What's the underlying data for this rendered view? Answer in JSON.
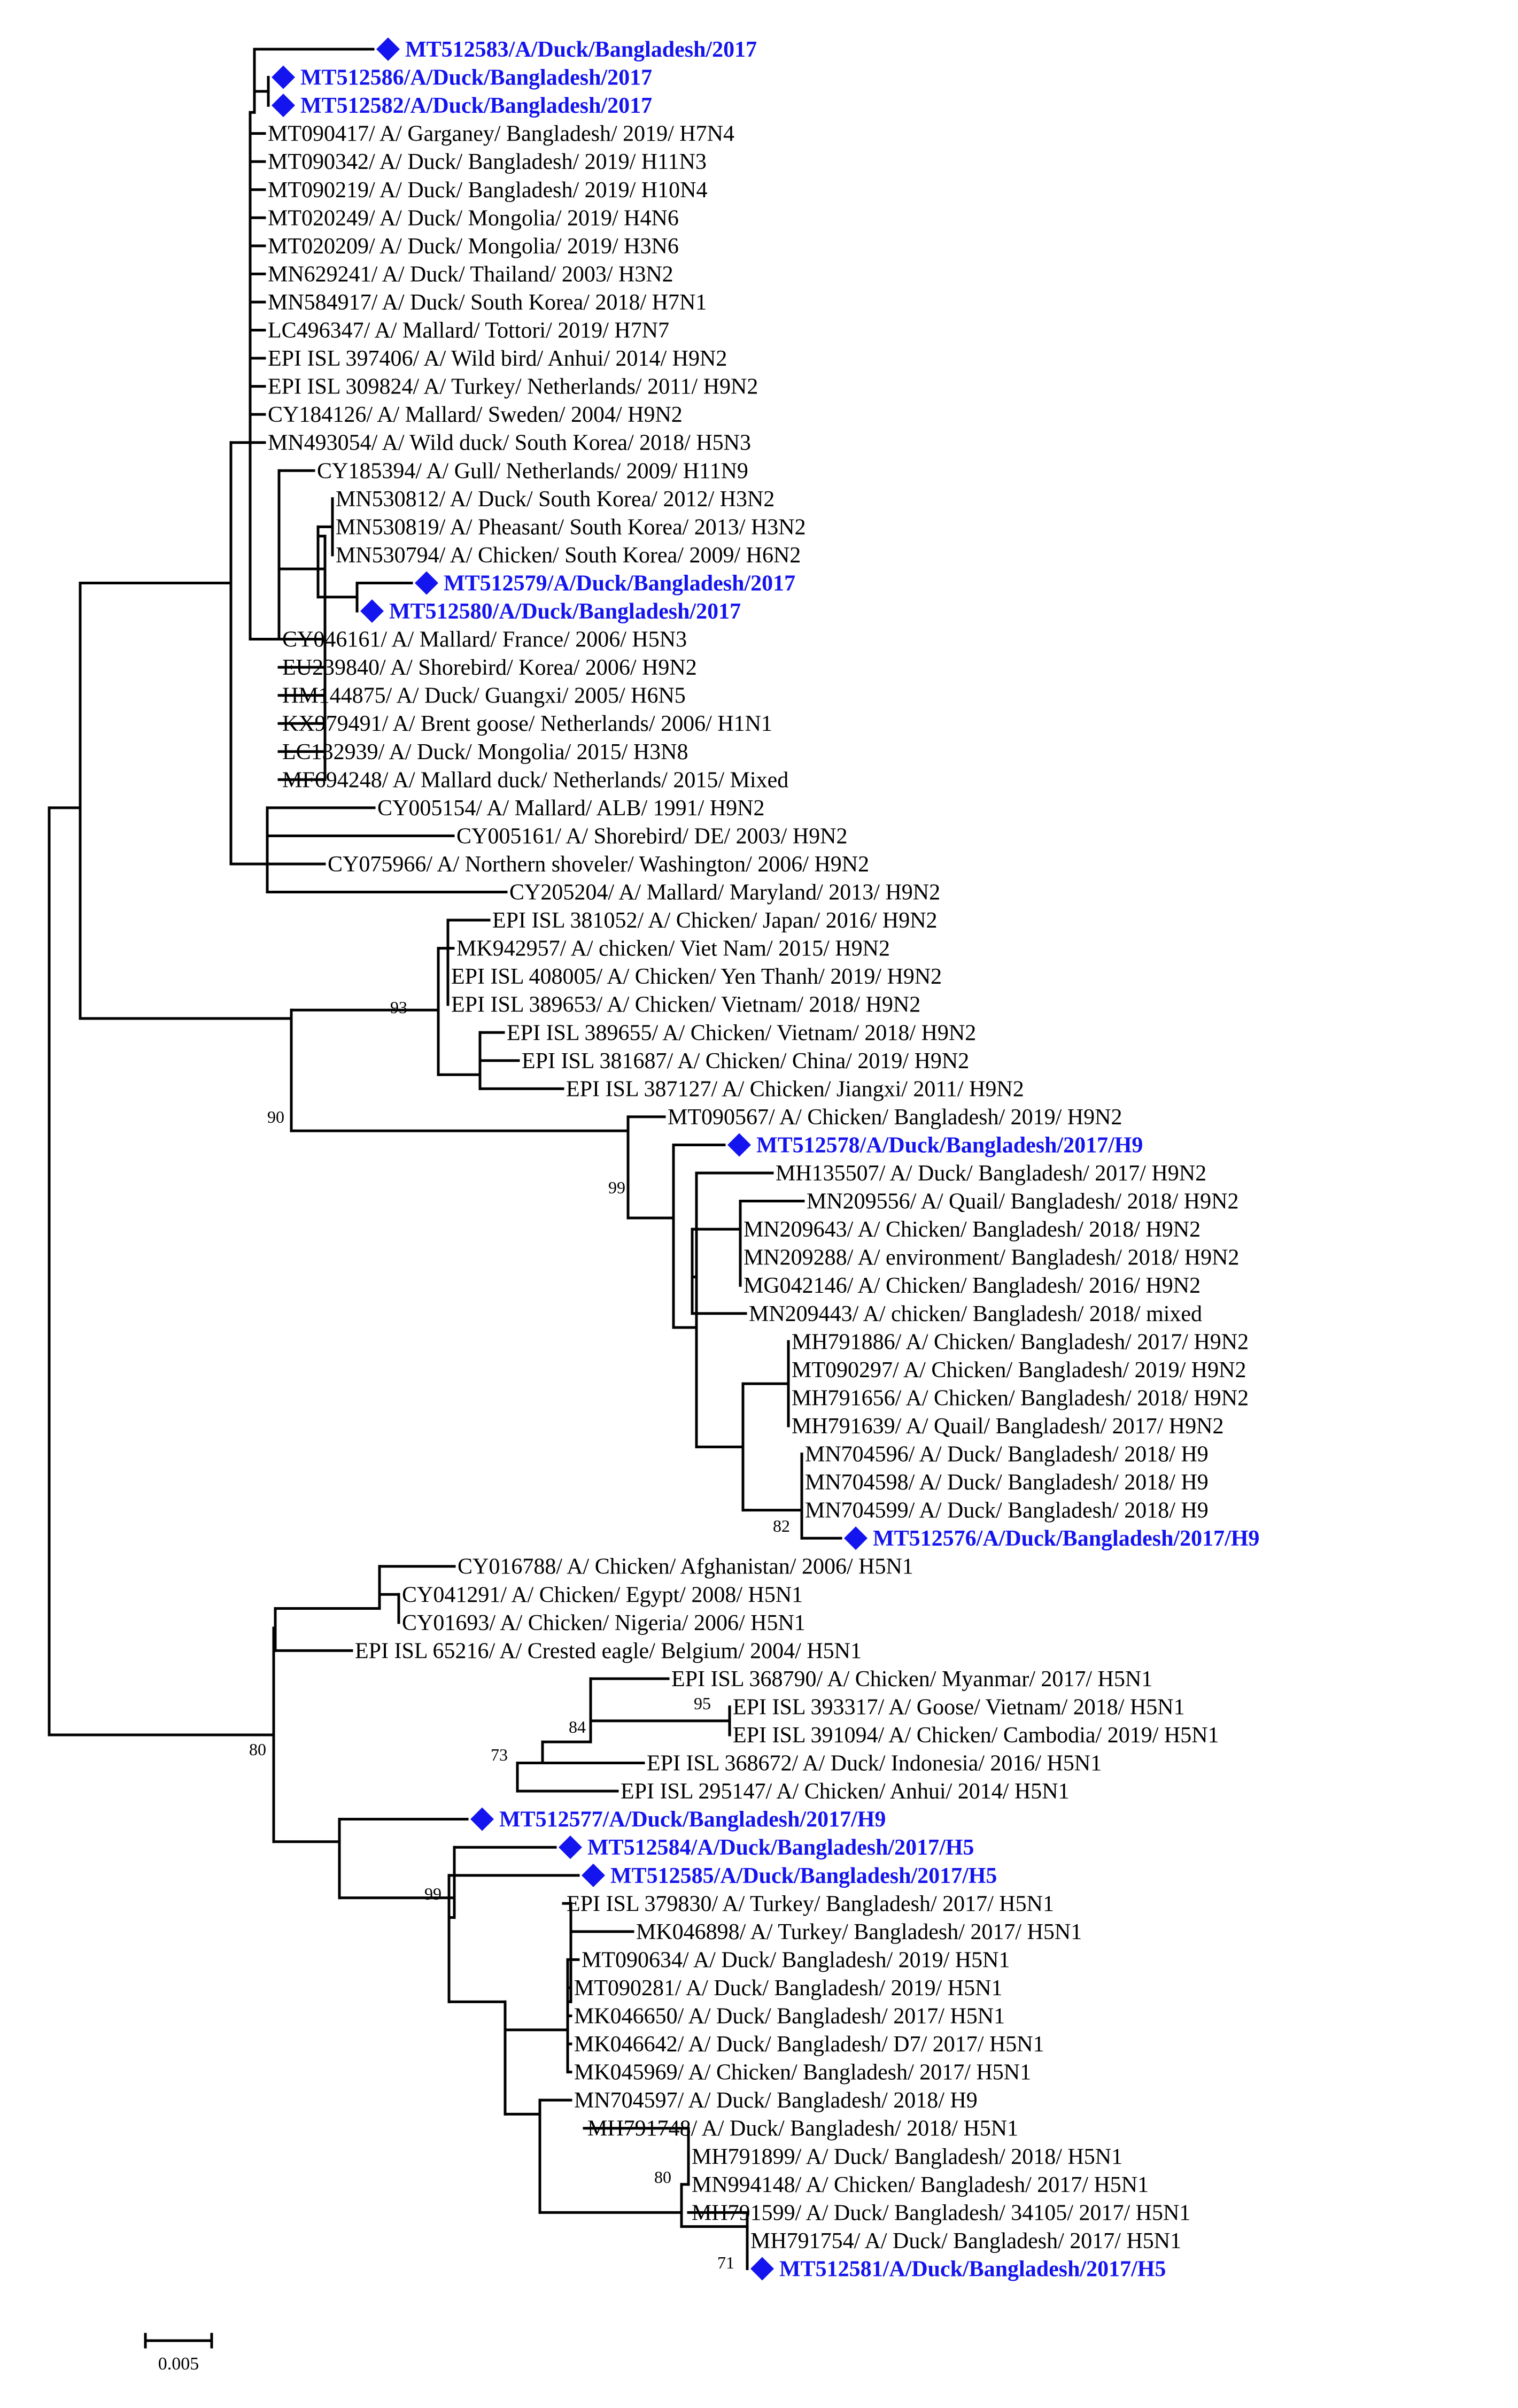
{
  "figure": {
    "kind": "phylogenetic-tree",
    "highlight_color": "#1414ee",
    "highlight_marker": "diamond",
    "scale_bar_label": "0.005"
  },
  "tips": [
    {
      "label": "MT512583/A/Duck/Bangladesh/2017",
      "highlight": true
    },
    {
      "label": "MT512586/A/Duck/Bangladesh/2017",
      "highlight": true
    },
    {
      "label": "MT512582/A/Duck/Bangladesh/2017",
      "highlight": true
    },
    {
      "label": "MT090417/ A/ Garganey/ Bangladesh/ 2019/ H7N4",
      "highlight": false
    },
    {
      "label": "MT090342/ A/ Duck/ Bangladesh/ 2019/ H11N3",
      "highlight": false
    },
    {
      "label": "MT090219/ A/ Duck/ Bangladesh/ 2019/ H10N4",
      "highlight": false
    },
    {
      "label": "MT020249/ A/ Duck/ Mongolia/ 2019/ H4N6",
      "highlight": false
    },
    {
      "label": "MT020209/ A/ Duck/ Mongolia/ 2019/ H3N6",
      "highlight": false
    },
    {
      "label": "MN629241/ A/ Duck/ Thailand/ 2003/ H3N2",
      "highlight": false
    },
    {
      "label": "MN584917/ A/ Duck/ South Korea/ 2018/ H7N1",
      "highlight": false
    },
    {
      "label": "LC496347/ A/ Mallard/ Tottori/ 2019/ H7N7",
      "highlight": false
    },
    {
      "label": "EPI ISL 397406/ A/ Wild bird/ Anhui/ 2014/ H9N2",
      "highlight": false
    },
    {
      "label": "EPI ISL 309824/ A/ Turkey/ Netherlands/ 2011/ H9N2",
      "highlight": false
    },
    {
      "label": "CY184126/ A/ Mallard/ Sweden/ 2004/ H9N2",
      "highlight": false
    },
    {
      "label": "MN493054/ A/ Wild duck/ South Korea/ 2018/ H5N3",
      "highlight": false
    },
    {
      "label": "CY185394/ A/ Gull/ Netherlands/ 2009/ H11N9",
      "highlight": false
    },
    {
      "label": "MN530812/ A/ Duck/ South Korea/ 2012/ H3N2",
      "highlight": false
    },
    {
      "label": "MN530819/ A/ Pheasant/ South Korea/ 2013/ H3N2",
      "highlight": false
    },
    {
      "label": "MN530794/ A/ Chicken/ South Korea/ 2009/ H6N2",
      "highlight": false
    },
    {
      "label": "MT512579/A/Duck/Bangladesh/2017",
      "highlight": true
    },
    {
      "label": "MT512580/A/Duck/Bangladesh/2017",
      "highlight": true
    },
    {
      "label": "CY046161/ A/ Mallard/ France/ 2006/ H5N3",
      "highlight": false
    },
    {
      "label": "EU239840/ A/ Shorebird/ Korea/ 2006/ H9N2",
      "highlight": false
    },
    {
      "label": "HM144875/ A/ Duck/ Guangxi/ 2005/ H6N5",
      "highlight": false
    },
    {
      "label": "KX979491/ A/ Brent goose/ Netherlands/ 2006/ H1N1",
      "highlight": false
    },
    {
      "label": "LC132939/ A/ Duck/ Mongolia/ 2015/ H3N8",
      "highlight": false
    },
    {
      "label": "MF694248/ A/ Mallard duck/ Netherlands/ 2015/ Mixed",
      "highlight": false
    },
    {
      "label": "CY005154/ A/ Mallard/ ALB/ 1991/ H9N2",
      "highlight": false
    },
    {
      "label": "CY005161/ A/ Shorebird/ DE/ 2003/ H9N2",
      "highlight": false
    },
    {
      "label": "CY075966/ A/ Northern shoveler/ Washington/ 2006/ H9N2",
      "highlight": false
    },
    {
      "label": "CY205204/ A/ Mallard/ Maryland/ 2013/ H9N2",
      "highlight": false
    },
    {
      "label": "EPI ISL 381052/ A/ Chicken/ Japan/ 2016/ H9N2",
      "highlight": false
    },
    {
      "label": "MK942957/ A/ chicken/ Viet Nam/ 2015/ H9N2",
      "highlight": false
    },
    {
      "label": "EPI ISL 408005/ A/ Chicken/ Yen Thanh/ 2019/ H9N2",
      "highlight": false
    },
    {
      "label": "EPI ISL 389653/ A/ Chicken/ Vietnam/ 2018/ H9N2",
      "highlight": false
    },
    {
      "label": "EPI ISL 389655/ A/ Chicken/ Vietnam/ 2018/ H9N2",
      "highlight": false
    },
    {
      "label": "EPI ISL 381687/ A/ Chicken/ China/ 2019/ H9N2",
      "highlight": false
    },
    {
      "label": "EPI ISL 387127/ A/ Chicken/ Jiangxi/ 2011/ H9N2",
      "highlight": false
    },
    {
      "label": "MT090567/ A/ Chicken/ Bangladesh/ 2019/ H9N2",
      "highlight": false
    },
    {
      "label": "MT512578/A/Duck/Bangladesh/2017/H9",
      "highlight": true
    },
    {
      "label": "MH135507/ A/ Duck/ Bangladesh/ 2017/ H9N2",
      "highlight": false
    },
    {
      "label": "MN209556/ A/ Quail/ Bangladesh/ 2018/ H9N2",
      "highlight": false
    },
    {
      "label": "MN209643/ A/ Chicken/ Bangladesh/ 2018/ H9N2",
      "highlight": false
    },
    {
      "label": "MN209288/ A/ environment/ Bangladesh/ 2018/ H9N2",
      "highlight": false
    },
    {
      "label": "MG042146/ A/ Chicken/ Bangladesh/ 2016/ H9N2",
      "highlight": false
    },
    {
      "label": "MN209443/ A/ chicken/ Bangladesh/ 2018/ mixed",
      "highlight": false
    },
    {
      "label": "MH791886/ A/ Chicken/ Bangladesh/ 2017/ H9N2",
      "highlight": false
    },
    {
      "label": "MT090297/ A/ Chicken/ Bangladesh/ 2019/ H9N2",
      "highlight": false
    },
    {
      "label": "MH791656/ A/ Chicken/ Bangladesh/ 2018/ H9N2",
      "highlight": false
    },
    {
      "label": "MH791639/ A/ Quail/ Bangladesh/ 2017/ H9N2",
      "highlight": false
    },
    {
      "label": "MN704596/ A/ Duck/ Bangladesh/ 2018/ H9",
      "highlight": false
    },
    {
      "label": "MN704598/ A/ Duck/ Bangladesh/ 2018/ H9",
      "highlight": false
    },
    {
      "label": "MN704599/ A/ Duck/ Bangladesh/ 2018/ H9",
      "highlight": false
    },
    {
      "label": "MT512576/A/Duck/Bangladesh/2017/H9",
      "highlight": true
    },
    {
      "label": "CY016788/ A/ Chicken/ Afghanistan/ 2006/ H5N1",
      "highlight": false
    },
    {
      "label": "CY041291/ A/ Chicken/ Egypt/ 2008/ H5N1",
      "highlight": false
    },
    {
      "label": "CY01693/ A/ Chicken/ Nigeria/ 2006/ H5N1",
      "highlight": false
    },
    {
      "label": "EPI ISL 65216/ A/ Crested eagle/ Belgium/ 2004/ H5N1",
      "highlight": false
    },
    {
      "label": "EPI ISL 368790/ A/ Chicken/ Myanmar/ 2017/ H5N1",
      "highlight": false
    },
    {
      "label": "EPI ISL 393317/ A/ Goose/ Vietnam/ 2018/ H5N1",
      "highlight": false
    },
    {
      "label": "EPI ISL 391094/ A/ Chicken/ Cambodia/ 2019/ H5N1",
      "highlight": false
    },
    {
      "label": "EPI ISL 368672/ A/ Duck/ Indonesia/ 2016/ H5N1",
      "highlight": false
    },
    {
      "label": "EPI ISL 295147/ A/ Chicken/ Anhui/ 2014/ H5N1",
      "highlight": false
    },
    {
      "label": "MT512577/A/Duck/Bangladesh/2017/H9",
      "highlight": true
    },
    {
      "label": "MT512584/A/Duck/Bangladesh/2017/H5",
      "highlight": true
    },
    {
      "label": "MT512585/A/Duck/Bangladesh/2017/H5",
      "highlight": true
    },
    {
      "label": "EPI ISL 379830/ A/ Turkey/ Bangladesh/ 2017/ H5N1",
      "highlight": false
    },
    {
      "label": "MK046898/ A/ Turkey/ Bangladesh/ 2017/ H5N1",
      "highlight": false
    },
    {
      "label": "MT090634/ A/ Duck/ Bangladesh/ 2019/ H5N1",
      "highlight": false
    },
    {
      "label": "MT090281/ A/ Duck/ Bangladesh/ 2019/ H5N1",
      "highlight": false
    },
    {
      "label": "MK046650/ A/ Duck/ Bangladesh/ 2017/ H5N1",
      "highlight": false
    },
    {
      "label": "MK046642/ A/ Duck/ Bangladesh/ D7/ 2017/ H5N1",
      "highlight": false
    },
    {
      "label": "MK045969/ A/ Chicken/ Bangladesh/ 2017/ H5N1",
      "highlight": false
    },
    {
      "label": "MN704597/ A/ Duck/ Bangladesh/ 2018/ H9",
      "highlight": false
    },
    {
      "label": "MH791748/ A/ Duck/ Bangladesh/ 2018/ H5N1",
      "highlight": false
    },
    {
      "label": "MH791899/ A/ Duck/ Bangladesh/ 2018/ H5N1",
      "highlight": false
    },
    {
      "label": "MN994148/ A/ Chicken/ Bangladesh/ 2017/ H5N1",
      "highlight": false
    },
    {
      "label": "MH791599/ A/ Duck/ Bangladesh/ 34105/ 2017/ H5N1",
      "highlight": false
    },
    {
      "label": "MH791754/ A/ Duck/ Bangladesh/ 2017/ H5N1",
      "highlight": false
    },
    {
      "label": "MT512581/A/Duck/Bangladesh/2017/H5",
      "highlight": true
    }
  ],
  "bootstrap_values": [
    "93",
    "90",
    "99",
    "82",
    "80",
    "95",
    "84",
    "73",
    "99",
    "80",
    "71"
  ]
}
